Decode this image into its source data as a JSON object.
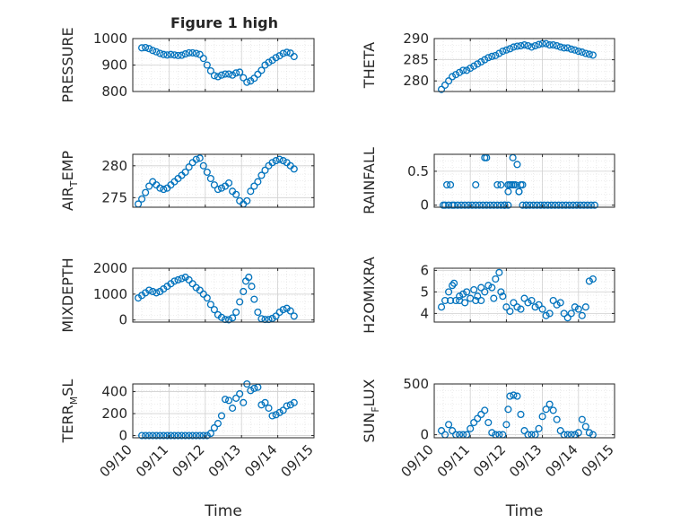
{
  "figure": {
    "title": "Figure 1 high"
  },
  "chart_data": [
    {
      "type": "scatter",
      "ylabel": "PRESSURE",
      "ylim": [
        800,
        1000
      ],
      "yticks": [
        800,
        900,
        1000
      ],
      "xlim": [
        0,
        5
      ],
      "xticklabels": [],
      "xlabel": "",
      "grid": true,
      "series": [
        {
          "color": "#0072BD",
          "marker": "circle",
          "x": [
            0.25,
            0.35,
            0.45,
            0.55,
            0.65,
            0.75,
            0.85,
            0.95,
            1.05,
            1.15,
            1.25,
            1.35,
            1.45,
            1.55,
            1.65,
            1.75,
            1.85,
            1.95,
            2.05,
            2.15,
            2.25,
            2.35,
            2.45,
            2.55,
            2.65,
            2.75,
            2.85,
            2.95,
            3.05,
            3.15,
            3.25,
            3.35,
            3.45,
            3.55,
            3.65,
            3.75,
            3.85,
            3.95,
            4.05,
            4.15,
            4.25,
            4.35,
            4.45
          ],
          "y": [
            965,
            966,
            962,
            955,
            950,
            944,
            940,
            938,
            940,
            938,
            936,
            937,
            942,
            946,
            946,
            944,
            940,
            925,
            900,
            878,
            860,
            856,
            862,
            866,
            866,
            862,
            870,
            873,
            852,
            835,
            840,
            850,
            865,
            880,
            900,
            910,
            918,
            928,
            935,
            944,
            948,
            945,
            932
          ]
        }
      ]
    },
    {
      "type": "scatter",
      "ylabel": "THETA",
      "ylim": [
        277.5,
        290
      ],
      "yticks": [
        280,
        285,
        290
      ],
      "xlim": [
        0,
        5
      ],
      "xticklabels": [],
      "xlabel": "",
      "grid": true,
      "series": [
        {
          "color": "#0072BD",
          "marker": "circle",
          "x": [
            0.2,
            0.3,
            0.4,
            0.5,
            0.6,
            0.7,
            0.8,
            0.9,
            1.0,
            1.1,
            1.2,
            1.3,
            1.4,
            1.5,
            1.6,
            1.7,
            1.8,
            1.9,
            2.0,
            2.1,
            2.2,
            2.3,
            2.4,
            2.5,
            2.6,
            2.7,
            2.8,
            2.9,
            3.0,
            3.1,
            3.2,
            3.3,
            3.4,
            3.5,
            3.6,
            3.7,
            3.8,
            3.9,
            4.0,
            4.1,
            4.2,
            4.3,
            4.4
          ],
          "y": [
            278,
            279,
            280,
            281,
            281.5,
            282,
            282.5,
            282.5,
            283,
            283.5,
            284,
            284.5,
            285,
            285.5,
            285.8,
            286,
            286.5,
            287,
            287.3,
            287.6,
            288,
            288.2,
            288.3,
            288.5,
            288.3,
            288,
            288.3,
            288.6,
            288.8,
            288.8,
            288.5,
            288.5,
            288.3,
            288,
            287.8,
            287.8,
            287.5,
            287.3,
            287,
            286.8,
            286.5,
            286.3,
            286.1
          ]
        }
      ]
    },
    {
      "type": "scatter",
      "ylabel": "AIR_TEMP",
      "ylim": [
        273.5,
        281.8
      ],
      "yticks": [
        275,
        280
      ],
      "xlim": [
        0,
        5
      ],
      "xticklabels": [],
      "xlabel": "",
      "grid": true,
      "series": [
        {
          "color": "#0072BD",
          "marker": "circle",
          "x": [
            0.15,
            0.25,
            0.35,
            0.45,
            0.55,
            0.65,
            0.75,
            0.85,
            0.95,
            1.05,
            1.15,
            1.25,
            1.35,
            1.45,
            1.55,
            1.65,
            1.75,
            1.85,
            1.95,
            2.05,
            2.15,
            2.25,
            2.35,
            2.45,
            2.55,
            2.65,
            2.75,
            2.85,
            2.95,
            3.05,
            3.15,
            3.25,
            3.35,
            3.45,
            3.55,
            3.65,
            3.75,
            3.85,
            3.95,
            4.05,
            4.15,
            4.25,
            4.35,
            4.45
          ],
          "y": [
            274,
            274.8,
            275.8,
            276.8,
            277.5,
            277,
            276.5,
            276.3,
            276.5,
            277,
            277.5,
            278,
            278.5,
            279,
            279.8,
            280.5,
            281,
            281.2,
            280,
            279,
            278,
            277,
            276.3,
            276.5,
            276.8,
            277.3,
            276,
            275.5,
            274.5,
            274,
            274.5,
            276,
            276.8,
            277.5,
            278.5,
            279.3,
            280,
            280.5,
            280.8,
            281,
            280.8,
            280.5,
            280,
            279.5
          ]
        }
      ]
    },
    {
      "type": "scatter",
      "ylabel": "RAINFALL",
      "ylim": [
        -0.03,
        0.75
      ],
      "yticks": [
        0,
        0.5
      ],
      "xlim": [
        0,
        5
      ],
      "xticklabels": [],
      "xlabel": "",
      "grid": true,
      "series": [
        {
          "color": "#0072BD",
          "marker": "circle",
          "x": [
            0.25,
            0.35,
            0.45,
            0.55,
            0.65,
            0.75,
            0.85,
            0.95,
            1.05,
            1.15,
            1.25,
            1.35,
            1.45,
            1.55,
            1.65,
            1.75,
            1.85,
            1.95,
            2.05,
            2.15,
            2.25,
            2.35,
            2.45,
            2.55,
            2.65,
            2.75,
            2.85,
            2.95,
            3.05,
            3.15,
            3.25,
            3.35,
            3.45,
            3.55,
            3.65,
            3.75,
            3.85,
            3.95,
            4.05,
            4.15,
            4.25,
            4.35,
            4.45,
            1.4,
            1.45,
            2.18,
            2.3,
            2.4,
            0.3,
            0.4,
            0.5,
            1.15,
            1.75,
            1.85,
            1.95,
            2.05,
            2.1,
            2.2,
            2.35,
            2.45,
            2.55,
            1.95,
            2.05
          ],
          "y": [
            0,
            0.3,
            0.3,
            0,
            0,
            0,
            0,
            0,
            0,
            0.3,
            0,
            0,
            0,
            0,
            0,
            0,
            0,
            0,
            0.3,
            0.3,
            0.3,
            0.2,
            0,
            0,
            0,
            0,
            0,
            0,
            0,
            0,
            0,
            0,
            0,
            0,
            0,
            0,
            0,
            0,
            0,
            0,
            0,
            0,
            0,
            0.7,
            0.7,
            0.7,
            0.6,
            0.3,
            0,
            0,
            0,
            0,
            0.3,
            0.3,
            0,
            0.2,
            0.3,
            0.3,
            0.2,
            0.3,
            0,
            0,
            0
          ]
        }
      ]
    },
    {
      "type": "scatter",
      "ylabel": "MIXDEPTH",
      "ylim": [
        -80,
        2000
      ],
      "yticks": [
        0,
        1000,
        2000
      ],
      "xlim": [
        0,
        5
      ],
      "xticklabels": [],
      "xlabel": "",
      "grid": true,
      "series": [
        {
          "color": "#0072BD",
          "marker": "circle",
          "x": [
            0.15,
            0.25,
            0.35,
            0.45,
            0.55,
            0.65,
            0.75,
            0.85,
            0.95,
            1.05,
            1.15,
            1.25,
            1.35,
            1.45,
            1.55,
            1.65,
            1.75,
            1.85,
            1.95,
            2.05,
            2.15,
            2.25,
            2.35,
            2.45,
            2.55,
            2.65,
            2.75,
            2.85,
            2.95,
            3.05,
            3.12,
            3.2,
            3.28,
            3.35,
            3.45,
            3.55,
            3.65,
            3.75,
            3.85,
            3.95,
            4.05,
            4.15,
            4.25,
            4.35,
            4.45
          ],
          "y": [
            850,
            950,
            1050,
            1150,
            1100,
            1050,
            1100,
            1200,
            1300,
            1400,
            1500,
            1550,
            1600,
            1650,
            1550,
            1400,
            1250,
            1150,
            1000,
            850,
            600,
            400,
            200,
            100,
            20,
            10,
            80,
            300,
            700,
            1100,
            1500,
            1650,
            1300,
            800,
            300,
            50,
            20,
            20,
            60,
            150,
            300,
            400,
            450,
            350,
            150
          ]
        }
      ]
    },
    {
      "type": "scatter",
      "ylabel": "H2OMIXRA",
      "ylim": [
        3.6,
        6.1
      ],
      "yticks": [
        4,
        5,
        6
      ],
      "xlim": [
        0,
        5
      ],
      "xticklabels": [],
      "xlabel": "",
      "grid": true,
      "series": [
        {
          "color": "#0072BD",
          "marker": "circle",
          "x": [
            0.2,
            0.3,
            0.4,
            0.5,
            0.6,
            0.7,
            0.8,
            0.9,
            1.0,
            1.1,
            1.2,
            1.3,
            1.4,
            1.5,
            1.6,
            1.7,
            1.8,
            1.9,
            2.0,
            2.1,
            2.2,
            2.3,
            2.4,
            2.5,
            2.6,
            2.7,
            2.8,
            2.9,
            3.0,
            3.1,
            3.2,
            3.3,
            3.4,
            3.5,
            3.6,
            3.7,
            3.8,
            3.9,
            4.0,
            4.1,
            4.2,
            4.3,
            4.4,
            0.45,
            0.55,
            0.7,
            0.85,
            1.15,
            1.3,
            1.65,
            1.85
          ],
          "y": [
            4.3,
            4.6,
            5.0,
            5.3,
            4.6,
            4.8,
            4.9,
            5.0,
            4.7,
            5.1,
            4.8,
            5.2,
            5.0,
            5.3,
            5.2,
            5.6,
            5.9,
            4.8,
            4.3,
            4.1,
            4.5,
            4.3,
            4.2,
            4.7,
            4.5,
            4.6,
            4.3,
            4.4,
            4.2,
            3.9,
            4.0,
            4.6,
            4.4,
            4.5,
            4.0,
            3.8,
            4.0,
            4.3,
            4.2,
            3.9,
            4.3,
            5.5,
            5.6,
            4.6,
            5.4,
            4.6,
            4.5,
            4.6,
            4.6,
            4.7,
            5.0
          ]
        }
      ]
    },
    {
      "type": "scatter",
      "ylabel": "TERR_MSL",
      "ylim": [
        -20,
        470
      ],
      "yticks": [
        0,
        200,
        400
      ],
      "xlim": [
        0,
        5
      ],
      "xticklabels": [
        "09/10",
        "09/11",
        "09/12",
        "09/13",
        "09/14",
        "09/15"
      ],
      "xlabel": "Time",
      "grid": true,
      "series": [
        {
          "color": "#0072BD",
          "marker": "circle",
          "x": [
            0.25,
            0.35,
            0.45,
            0.55,
            0.65,
            0.75,
            0.85,
            0.95,
            1.05,
            1.15,
            1.25,
            1.35,
            1.45,
            1.55,
            1.65,
            1.75,
            1.85,
            1.95,
            2.05,
            2.15,
            2.25,
            2.35,
            2.45,
            2.55,
            2.65,
            2.75,
            2.85,
            2.95,
            3.05,
            3.15,
            3.25,
            3.35,
            3.45,
            3.55,
            3.65,
            3.75,
            3.85,
            3.95,
            4.05,
            4.15,
            4.25,
            4.35,
            4.45
          ],
          "y": [
            0,
            0,
            0,
            0,
            0,
            0,
            0,
            0,
            0,
            0,
            0,
            0,
            0,
            0,
            0,
            0,
            0,
            0,
            0,
            20,
            70,
            110,
            180,
            330,
            320,
            250,
            340,
            380,
            300,
            470,
            410,
            430,
            440,
            280,
            300,
            250,
            180,
            190,
            210,
            230,
            270,
            280,
            300
          ]
        }
      ]
    },
    {
      "type": "scatter",
      "ylabel": "SUN_FLUX",
      "ylim": [
        -30,
        500
      ],
      "yticks": [
        0,
        500
      ],
      "xlim": [
        0,
        5
      ],
      "xticklabels": [
        "09/10",
        "09/11",
        "09/12",
        "09/13",
        "09/14",
        "09/15"
      ],
      "xlabel": "Time",
      "grid": true,
      "series": [
        {
          "color": "#0072BD",
          "marker": "circle",
          "x": [
            0.2,
            0.3,
            0.4,
            0.5,
            0.6,
            0.7,
            0.8,
            0.9,
            1.0,
            1.1,
            1.2,
            1.3,
            1.4,
            1.5,
            1.6,
            1.7,
            1.8,
            1.9,
            2.0,
            2.05,
            2.1,
            2.2,
            2.3,
            2.4,
            2.5,
            2.6,
            2.7,
            2.8,
            2.9,
            3.0,
            3.1,
            3.2,
            3.3,
            3.4,
            3.5,
            3.6,
            3.7,
            3.8,
            3.9,
            4.0,
            4.1,
            4.2,
            4.3,
            4.4
          ],
          "y": [
            40,
            0,
            100,
            40,
            0,
            0,
            0,
            0,
            60,
            120,
            160,
            200,
            240,
            120,
            20,
            0,
            0,
            0,
            100,
            250,
            380,
            390,
            380,
            200,
            40,
            0,
            0,
            0,
            60,
            180,
            250,
            300,
            240,
            150,
            40,
            0,
            0,
            0,
            0,
            20,
            150,
            80,
            20,
            0
          ]
        }
      ]
    }
  ]
}
